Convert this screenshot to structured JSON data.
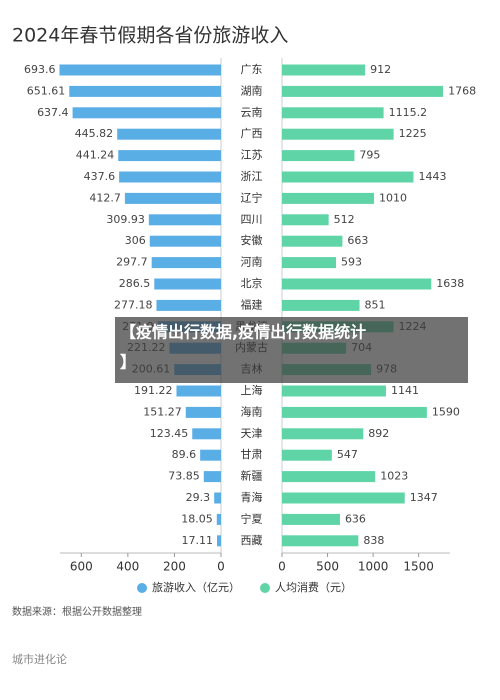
{
  "chart_data": {
    "type": "butterfly",
    "title": "2024年春节假期各省份旅游收入",
    "categories": [
      "广东",
      "湖南",
      "云南",
      "广西",
      "江苏",
      "浙江",
      "辽宁",
      "四川",
      "安徽",
      "河南",
      "北京",
      "福建",
      "黑龙江",
      "内蒙古",
      "吉林",
      "上海",
      "海南",
      "天津",
      "甘肃",
      "新疆",
      "青海",
      "宁夏",
      "西藏"
    ],
    "series": [
      {
        "name": "旅游收入（亿元）",
        "color": "#5aaee6",
        "xlim": [
          0,
          700
        ],
        "xticks": [
          0,
          200,
          400,
          600
        ],
        "values": [
          693.6,
          651.61,
          637.4,
          445.82,
          441.24,
          437.6,
          412.7,
          309.93,
          306,
          297.7,
          286.5,
          277.18,
          271.9,
          221.22,
          200.61,
          191.22,
          151.27,
          123.45,
          89.6,
          73.85,
          29.3,
          18.05,
          17.11
        ]
      },
      {
        "name": "人均消费（元）",
        "color": "#5fd4a6",
        "xlim": [
          0,
          1800
        ],
        "xticks": [
          0,
          500,
          1000,
          1500
        ],
        "values": [
          912,
          1768,
          1115.2,
          1225,
          795,
          1443,
          1010,
          512,
          663,
          593,
          1638,
          851,
          1224,
          704,
          978,
          1141,
          1590,
          892,
          547,
          1023,
          1347,
          636,
          838
        ]
      }
    ],
    "source": "数据来源：根据公开数据整理"
  },
  "footer": "城市进化论",
  "banner": [
    "【疫情出行数据,疫情出行数据统计",
    "】"
  ]
}
